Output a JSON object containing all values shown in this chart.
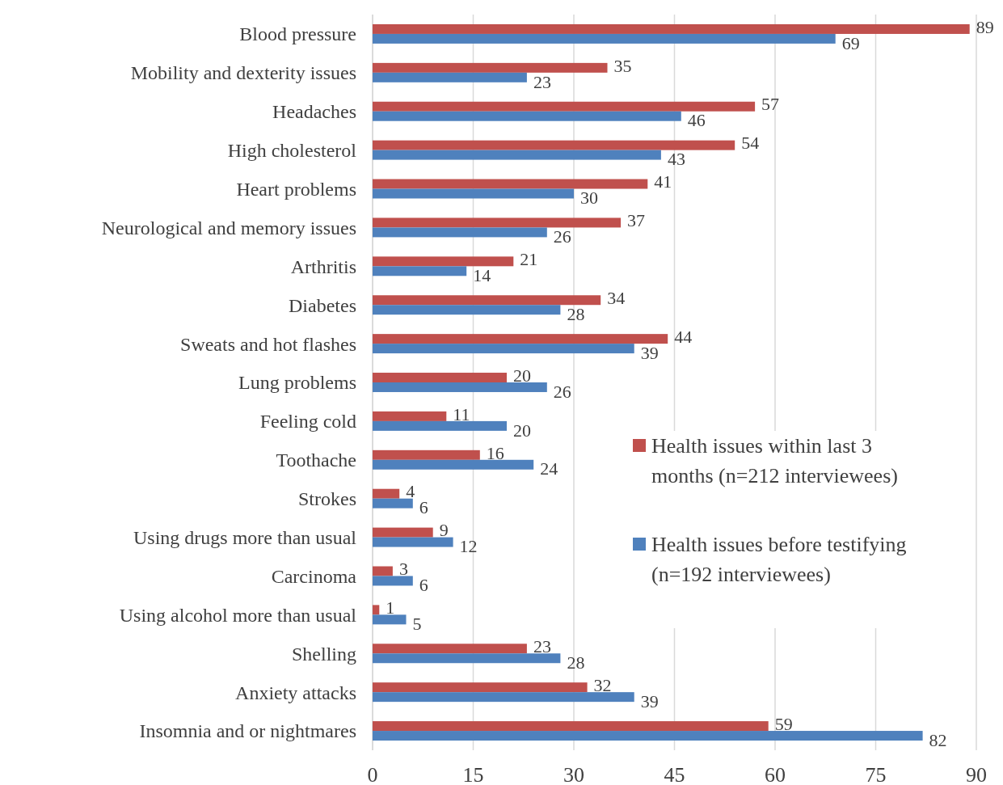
{
  "chart_data": {
    "type": "bar",
    "orientation": "horizontal",
    "categories": [
      "Blood pressure",
      "Mobility and dexterity issues",
      "Headaches",
      "High cholesterol",
      "Heart problems",
      "Neurological and memory issues",
      "Arthritis",
      "Diabetes",
      "Sweats and hot flashes",
      "Lung problems",
      "Feeling cold",
      "Toothache",
      "Strokes",
      "Using drugs more than usual",
      "Carcinoma",
      "Using alcohol more than usual",
      "Shelling",
      "Anxiety attacks",
      "Insomnia and or nightmares"
    ],
    "series": [
      {
        "name": "Health issues within last 3 months (n=212 interviewees)",
        "color": "#c0504d",
        "values": [
          89,
          35,
          57,
          54,
          41,
          37,
          21,
          34,
          44,
          20,
          11,
          16,
          4,
          9,
          3,
          1,
          23,
          32,
          59
        ]
      },
      {
        "name": "Health issues before testifying (n=192 interviewees)",
        "color": "#4f81bd",
        "values": [
          69,
          23,
          46,
          43,
          30,
          26,
          14,
          28,
          39,
          26,
          20,
          24,
          6,
          12,
          6,
          5,
          28,
          39,
          82
        ]
      }
    ],
    "xlim": [
      0,
      90
    ],
    "xticks": [
      0,
      15,
      30,
      45,
      60,
      75,
      90
    ],
    "grid": "x",
    "legend": "right",
    "data_labels": true
  }
}
